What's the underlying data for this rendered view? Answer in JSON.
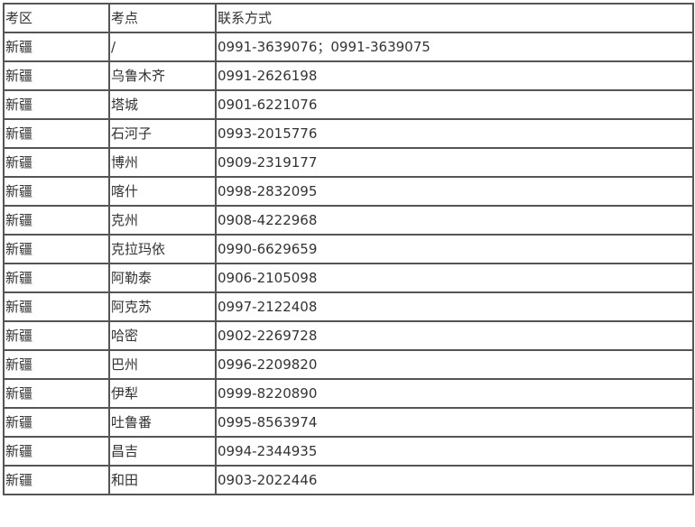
{
  "table": {
    "headers": [
      "考区",
      "考点",
      "联系方式"
    ],
    "rows": [
      [
        "新疆",
        "/",
        "0991-3639076；0991-3639075"
      ],
      [
        "新疆",
        "乌鲁木齐",
        "0991-2626198"
      ],
      [
        "新疆",
        "塔城",
        "0901-6221076"
      ],
      [
        "新疆",
        "石河子",
        "0993-2015776"
      ],
      [
        "新疆",
        "博州",
        "0909-2319177"
      ],
      [
        "新疆",
        "喀什",
        "0998-2832095"
      ],
      [
        "新疆",
        "克州",
        "0908-4222968"
      ],
      [
        "新疆",
        "克拉玛依",
        "0990-6629659"
      ],
      [
        "新疆",
        "阿勒泰",
        "0906-2105098"
      ],
      [
        "新疆",
        "阿克苏",
        "0997-2122408"
      ],
      [
        "新疆",
        "哈密",
        "0902-2269728"
      ],
      [
        "新疆",
        "巴州",
        "0996-2209820"
      ],
      [
        "新疆",
        "伊犁",
        "0999-8220890"
      ],
      [
        "新疆",
        "吐鲁番",
        "0995-8563974"
      ],
      [
        "新疆",
        "昌吉",
        "0994-2344935"
      ],
      [
        "新疆",
        "和田",
        "0903-2022446"
      ]
    ]
  }
}
